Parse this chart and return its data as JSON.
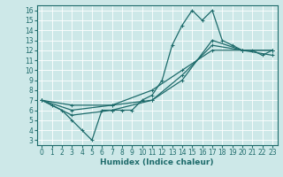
{
  "title": "",
  "xlabel": "Humidex (Indice chaleur)",
  "ylabel": "",
  "xlim": [
    -0.5,
    23.5
  ],
  "ylim": [
    2.5,
    16.5
  ],
  "xticks": [
    0,
    1,
    2,
    3,
    4,
    5,
    6,
    7,
    8,
    9,
    10,
    11,
    12,
    13,
    14,
    15,
    16,
    17,
    18,
    19,
    20,
    21,
    22,
    23
  ],
  "yticks": [
    3,
    4,
    5,
    6,
    7,
    8,
    9,
    10,
    11,
    12,
    13,
    14,
    15,
    16
  ],
  "bg_color": "#cde8e8",
  "grid_color": "#ffffff",
  "line_color": "#1e6b6b",
  "lines": [
    {
      "x": [
        0,
        1,
        2,
        3,
        4,
        5,
        6,
        7,
        8,
        9,
        10,
        11,
        12,
        13,
        14,
        15,
        16,
        17,
        18,
        19,
        20,
        21,
        22,
        23
      ],
      "y": [
        7,
        6.5,
        6,
        5,
        4,
        3,
        6,
        6,
        6,
        6,
        7,
        7.5,
        9,
        12.5,
        14.5,
        16,
        15,
        16,
        13,
        12.5,
        12,
        12,
        11.5,
        12
      ]
    },
    {
      "x": [
        0,
        3,
        7,
        11,
        14,
        17,
        20,
        23
      ],
      "y": [
        7,
        6.5,
        6.5,
        7,
        9,
        13,
        12,
        12
      ]
    },
    {
      "x": [
        0,
        3,
        7,
        11,
        14,
        17,
        20,
        23
      ],
      "y": [
        7,
        6,
        6.5,
        8,
        10,
        12,
        12,
        12
      ]
    },
    {
      "x": [
        0,
        3,
        7,
        11,
        14,
        17,
        20,
        23
      ],
      "y": [
        7,
        5.5,
        6,
        7,
        9.5,
        12.5,
        12,
        11.5
      ]
    }
  ],
  "marker": "+",
  "marker_size": 3,
  "line_width": 0.9,
  "tick_fontsize": 5.5,
  "xlabel_fontsize": 6.5
}
